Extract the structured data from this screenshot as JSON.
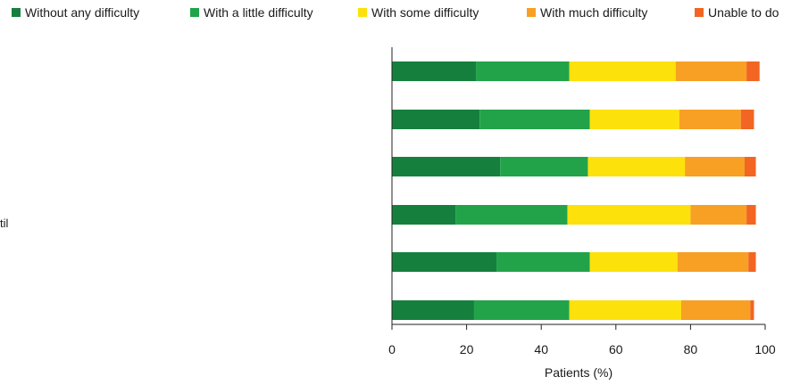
{
  "chart_data": {
    "type": "bar",
    "orientation": "horizontal",
    "stacked": true,
    "categories": [
      "",
      "",
      "",
      "",
      "",
      ""
    ],
    "category_label_fragments": [
      "til"
    ],
    "series": [
      {
        "name": "Without any difficulty",
        "color": "#15803d",
        "values": [
          22.5,
          23.5,
          29,
          17,
          28,
          22
        ]
      },
      {
        "name": "With a little difficulty",
        "color": "#22a34a",
        "values": [
          25,
          29.5,
          23.5,
          30,
          25,
          25.5
        ]
      },
      {
        "name": "With some difficulty",
        "color": "#fde10a",
        "values": [
          28.5,
          24,
          26,
          33,
          23.5,
          30
        ]
      },
      {
        "name": "With much difficulty",
        "color": "#f7a024",
        "values": [
          19,
          16.5,
          16,
          15,
          19,
          18.5
        ]
      },
      {
        "name": "Unable to do",
        "color": "#f26522",
        "values": [
          3.5,
          3.5,
          3,
          2.5,
          2,
          1
        ]
      }
    ],
    "xlabel": "Patients (%)",
    "ylabel": "",
    "xlim": [
      0,
      100
    ],
    "xticks": [
      0,
      20,
      40,
      60,
      80,
      100
    ],
    "grid": false,
    "legend_position": "top"
  }
}
